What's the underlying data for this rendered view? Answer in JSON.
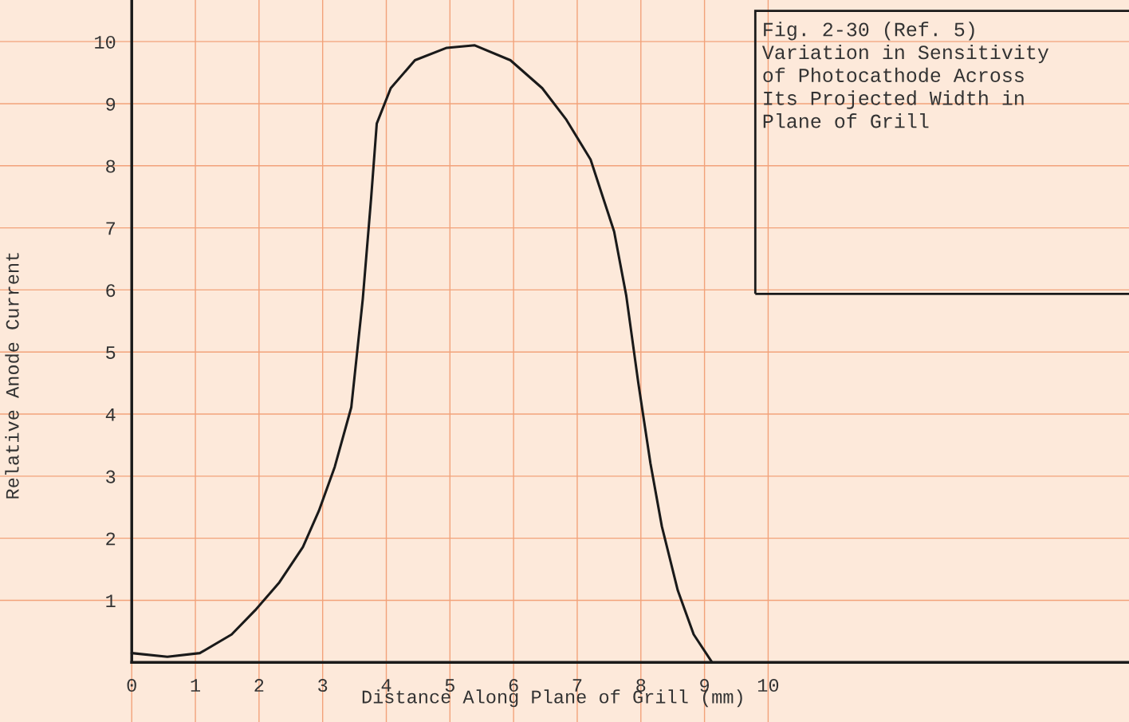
{
  "chart_data": {
    "type": "line",
    "title": "Fig. 2-30 (Ref. 5)\nVariation in Sensitivity\nof Photocathode Across\nIts Projected Width in\nPlane of Grill",
    "xlabel": "Distance Along Plane of Grill (mm)",
    "ylabel": "Relative Anode Current",
    "x": [
      0,
      0.56,
      1.07,
      1.57,
      1.94,
      2.32,
      2.69,
      2.94,
      3.19,
      3.45,
      3.63,
      3.76,
      3.85,
      4.07,
      4.45,
      4.95,
      5.39,
      5.95,
      6.45,
      6.83,
      7.21,
      7.58,
      7.77,
      7.96,
      8.15,
      8.33,
      8.58,
      8.83,
      9.12
    ],
    "series": [
      {
        "color": "#1a1a1a",
        "values": [
          0.15,
          0.09,
          0.15,
          0.45,
          0.84,
          1.29,
          1.86,
          2.44,
          3.15,
          4.11,
          5.85,
          7.46,
          8.68,
          9.25,
          9.7,
          9.9,
          9.94,
          9.7,
          9.25,
          8.74,
          8.1,
          6.94,
          5.91,
          4.5,
          3.21,
          2.19,
          1.16,
          0.45,
          0
        ]
      }
    ],
    "xlim": [
      -2.07,
      15.67
    ],
    "ylim": [
      -0.96,
      10.67
    ],
    "xticks": [
      0,
      1,
      2,
      3,
      4,
      5,
      6,
      7,
      8,
      9,
      10
    ],
    "yticks": [
      1,
      2,
      3,
      4,
      5,
      6,
      7,
      8,
      9,
      10
    ],
    "grid": true,
    "marker": "none",
    "line_style": "solid"
  }
}
